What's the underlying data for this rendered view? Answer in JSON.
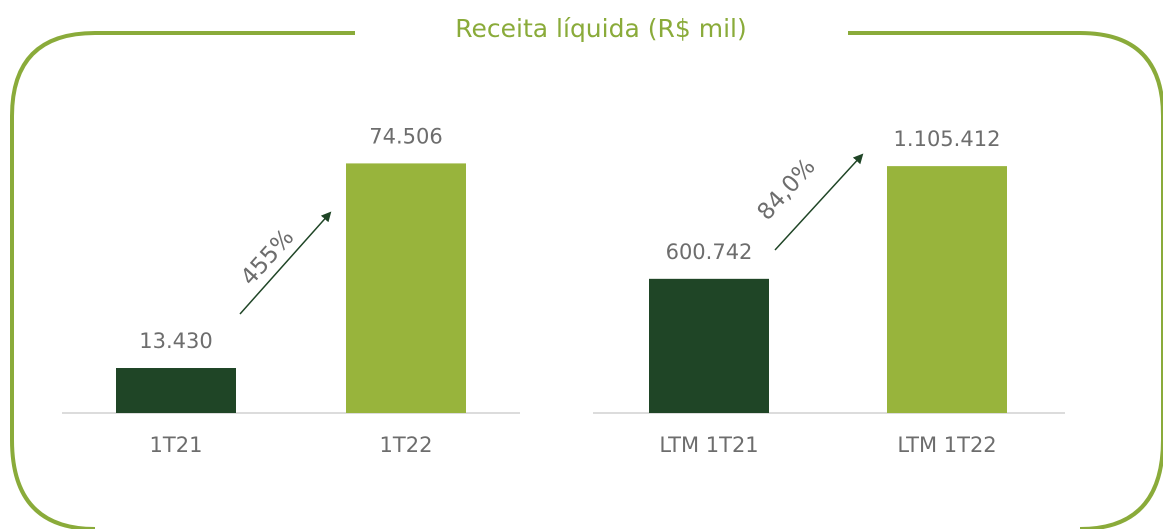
{
  "title": "Receita líquida (R$ mil)",
  "chart_data": [
    {
      "type": "bar",
      "categories": [
        "1T21",
        "1T22"
      ],
      "values": [
        13430,
        74506
      ],
      "value_labels": [
        "13.430",
        "74.506"
      ],
      "colors": [
        "#1f4526",
        "#98b43c"
      ],
      "ylim": [
        0,
        80000
      ],
      "annotation": "455%"
    },
    {
      "type": "bar",
      "categories": [
        "LTM 1T21",
        "LTM 1T22"
      ],
      "values": [
        600742,
        1105412
      ],
      "value_labels": [
        "600.742",
        "1.105.412"
      ],
      "colors": [
        "#1f4526",
        "#98b43c"
      ],
      "ylim": [
        0,
        1200000
      ],
      "annotation": "84,0%"
    }
  ]
}
